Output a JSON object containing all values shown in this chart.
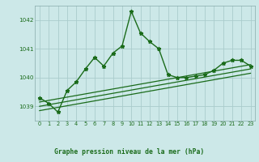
{
  "title": "Graphe pression niveau de la mer (hPa)",
  "background_color": "#cce8e8",
  "grid_color": "#aacccc",
  "line_color": "#1a6b1a",
  "xlim": [
    -0.5,
    23.5
  ],
  "ylim": [
    1038.5,
    1042.5
  ],
  "yticks": [
    1039,
    1040,
    1041,
    1042
  ],
  "xticks": [
    0,
    1,
    2,
    3,
    4,
    5,
    6,
    7,
    8,
    9,
    10,
    11,
    12,
    13,
    14,
    15,
    16,
    17,
    18,
    19,
    20,
    21,
    22,
    23
  ],
  "main_series_x": [
    0,
    1,
    2,
    3,
    4,
    5,
    6,
    7,
    8,
    9,
    10,
    11,
    12,
    13,
    14,
    15,
    16,
    17,
    18,
    19,
    20,
    21,
    22,
    23
  ],
  "main_series_y": [
    1039.3,
    1039.1,
    1038.8,
    1039.55,
    1039.85,
    1040.3,
    1040.7,
    1040.4,
    1040.85,
    1041.1,
    1042.3,
    1041.55,
    1041.25,
    1041.0,
    1040.1,
    1040.0,
    1040.0,
    1040.05,
    1040.1,
    1040.25,
    1040.5,
    1040.6,
    1040.6,
    1040.4
  ],
  "trend1_x": [
    0,
    23
  ],
  "trend1_y": [
    1039.15,
    1040.45
  ],
  "trend2_x": [
    0,
    23
  ],
  "trend2_y": [
    1038.85,
    1040.15
  ],
  "trend3_x": [
    0,
    23
  ],
  "trend3_y": [
    1039.0,
    1040.3
  ]
}
